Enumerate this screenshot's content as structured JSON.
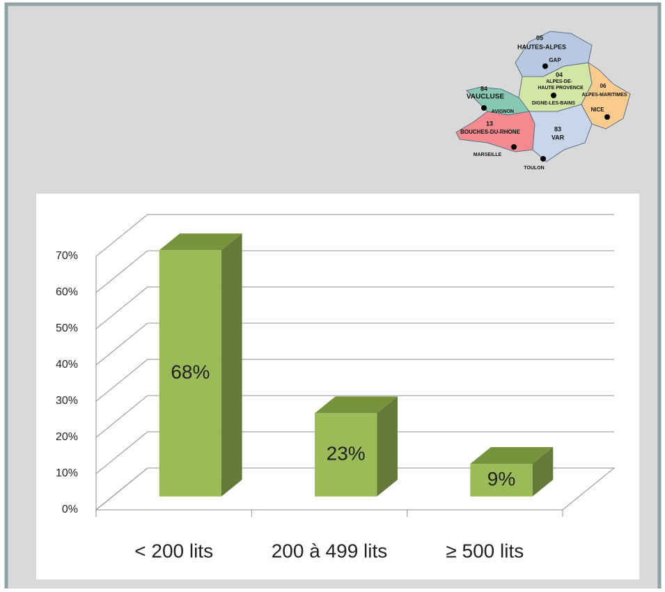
{
  "chart_data": {
    "type": "bar3d",
    "categories": [
      "< 200 lits",
      "200 à 499 lits",
      "≥ 500 lits"
    ],
    "values": [
      68,
      23,
      9
    ],
    "value_labels": [
      "68%",
      "23%",
      "9%"
    ],
    "color": "#9bbb59",
    "ylim": [
      0,
      70
    ],
    "yticks": [
      {
        "value": 0,
        "label": "0%"
      },
      {
        "value": 10,
        "label": "10%"
      },
      {
        "value": 20,
        "label": "20%"
      },
      {
        "value": 30,
        "label": "30%"
      },
      {
        "value": 40,
        "label": "40%"
      },
      {
        "value": 50,
        "label": "50%"
      },
      {
        "value": 60,
        "label": "60%"
      },
      {
        "value": 70,
        "label": "70%"
      }
    ],
    "grid": true
  },
  "map_labels": [
    "05",
    "HAUTES-ALPES",
    "GAP",
    "04",
    "ALPES-DE-",
    "HAUTE PROVENCE",
    "DIGNE-LES-BAINS",
    "06",
    "ALPES-MARITIMES",
    "NICE",
    "84",
    "VAUCLUSE",
    "AVIGNON",
    "13",
    "BOUCHES-DU-RHONE",
    "MARSEILLE",
    "83",
    "VAR",
    "TOULON"
  ]
}
